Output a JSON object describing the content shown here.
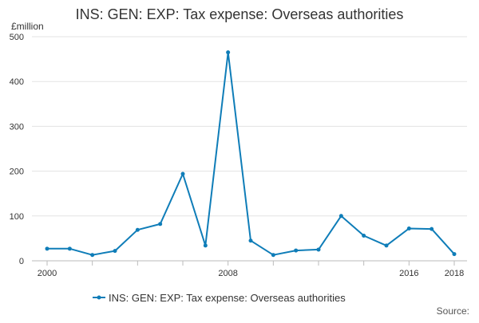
{
  "chart_data": {
    "type": "line",
    "title": "INS: GEN: EXP: Tax expense: Overseas authorities",
    "ylabel": "£million",
    "xlabel": "",
    "x": [
      2000,
      2001,
      2002,
      2003,
      2004,
      2005,
      2006,
      2007,
      2008,
      2009,
      2010,
      2011,
      2012,
      2013,
      2014,
      2015,
      2016,
      2017,
      2018
    ],
    "x_tick_labels": [
      "2000",
      "2008",
      "2016",
      "2018"
    ],
    "xlim": [
      2000,
      2018
    ],
    "ylim": [
      0,
      500
    ],
    "y_ticks": [
      0,
      100,
      200,
      300,
      400,
      500
    ],
    "grid": true,
    "legend_position": "bottom",
    "series": [
      {
        "name": "INS: GEN: EXP: Tax expense: Overseas authorities",
        "color": "#0f7db8",
        "values": [
          27,
          27,
          13,
          22,
          69,
          82,
          194,
          34,
          465,
          45,
          13,
          23,
          25,
          100,
          56,
          34,
          72,
          71,
          15
        ]
      }
    ],
    "source_label": "Source:"
  }
}
